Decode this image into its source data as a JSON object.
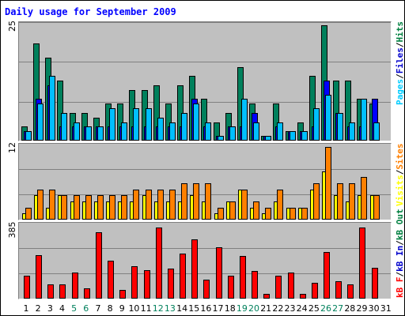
{
  "title": "Daily usage for September 2009",
  "panels": {
    "top": {
      "ymax_label": "25",
      "legend": [
        {
          "text": "Pages",
          "color": "#00ccff"
        },
        {
          "text": "/",
          "color": "#000000"
        },
        {
          "text": "Files",
          "color": "#0000cc"
        },
        {
          "text": "/",
          "color": "#000000"
        },
        {
          "text": "Hits",
          "color": "#008040"
        }
      ]
    },
    "middle": {
      "ymax_label": "12",
      "legend": [
        {
          "text": "Visits",
          "color": "#ffff00"
        },
        {
          "text": "/",
          "color": "#000000"
        },
        {
          "text": "Sites",
          "color": "#ff8000"
        }
      ]
    },
    "bottom": {
      "ymax_label": "385",
      "legend": [
        {
          "text": "kB F",
          "color": "#ff0000"
        },
        {
          "text": "/",
          "color": "#000000"
        },
        {
          "text": "kB In",
          "color": "#0000cc"
        },
        {
          "text": "/",
          "color": "#000000"
        },
        {
          "text": "kB Out",
          "color": "#008040"
        }
      ]
    }
  },
  "days_weekend_color": "#00805c",
  "chart_data": [
    {
      "type": "bar",
      "title": "Daily usage for September 2009",
      "categories": [
        "1",
        "2",
        "3",
        "4",
        "5",
        "6",
        "7",
        "8",
        "9",
        "10",
        "11",
        "12",
        "13",
        "14",
        "15",
        "16",
        "17",
        "18",
        "19",
        "20",
        "21",
        "22",
        "23",
        "24",
        "25",
        "26",
        "27",
        "28",
        "29",
        "30",
        "31"
      ],
      "weekend_days": [
        "5",
        "6",
        "12",
        "13",
        "19",
        "20",
        "26",
        "27"
      ],
      "ylim": [
        0,
        25
      ],
      "series": [
        {
          "name": "Hits",
          "color": "#00805c",
          "values": [
            3,
            21,
            18,
            13,
            6,
            6,
            5,
            8,
            8,
            11,
            11,
            12,
            8,
            12,
            14,
            9,
            4,
            6,
            16,
            8,
            1,
            8,
            2,
            4,
            14,
            25,
            13,
            13,
            9,
            8,
            0
          ]
        },
        {
          "name": "Files",
          "color": "#0000ff",
          "values": [
            2,
            9,
            12,
            3,
            3,
            3,
            3,
            3,
            3,
            3,
            3,
            3,
            3,
            3,
            9,
            3,
            1,
            3,
            3,
            6,
            1,
            3,
            2,
            2,
            3,
            13,
            6,
            3,
            3,
            9,
            0
          ]
        },
        {
          "name": "Pages",
          "color": "#00bfff",
          "values": [
            2,
            8,
            14,
            6,
            4,
            3,
            3,
            7,
            4,
            7,
            7,
            5,
            4,
            6,
            8,
            4,
            1,
            3,
            9,
            4,
            1,
            4,
            2,
            2,
            7,
            10,
            6,
            4,
            9,
            4,
            0
          ]
        }
      ]
    },
    {
      "type": "bar",
      "categories": [
        "1",
        "2",
        "3",
        "4",
        "5",
        "6",
        "7",
        "8",
        "9",
        "10",
        "11",
        "12",
        "13",
        "14",
        "15",
        "16",
        "17",
        "18",
        "19",
        "20",
        "21",
        "22",
        "23",
        "24",
        "25",
        "26",
        "27",
        "28",
        "29",
        "30",
        "31"
      ],
      "ylim": [
        0,
        12
      ],
      "series": [
        {
          "name": "Visits",
          "color": "#ffff00",
          "values": [
            1,
            4,
            2,
            4,
            3,
            3,
            3,
            3,
            3,
            3,
            4,
            3,
            3,
            3,
            4,
            3,
            1,
            3,
            5,
            2,
            1,
            3,
            2,
            2,
            5,
            8,
            4,
            3,
            4,
            4,
            0
          ]
        },
        {
          "name": "Sites",
          "color": "#ff8000",
          "values": [
            2,
            5,
            5,
            4,
            4,
            4,
            4,
            4,
            4,
            5,
            5,
            5,
            5,
            6,
            6,
            6,
            2,
            3,
            5,
            3,
            2,
            5,
            2,
            2,
            6,
            12,
            6,
            6,
            7,
            4,
            0
          ]
        }
      ]
    },
    {
      "type": "bar",
      "categories": [
        "1",
        "2",
        "3",
        "4",
        "5",
        "6",
        "7",
        "8",
        "9",
        "10",
        "11",
        "12",
        "13",
        "14",
        "15",
        "16",
        "17",
        "18",
        "19",
        "20",
        "21",
        "22",
        "23",
        "24",
        "25",
        "26",
        "27",
        "28",
        "29",
        "30",
        "31"
      ],
      "ylim": [
        0,
        385
      ],
      "series": [
        {
          "name": "kB F",
          "color": "#ff0000",
          "values": [
            120,
            230,
            75,
            75,
            140,
            55,
            350,
            200,
            45,
            170,
            150,
            375,
            160,
            240,
            315,
            100,
            270,
            120,
            225,
            145,
            25,
            120,
            140,
            25,
            85,
            245,
            90,
            75,
            375,
            165,
            0
          ]
        }
      ]
    }
  ]
}
